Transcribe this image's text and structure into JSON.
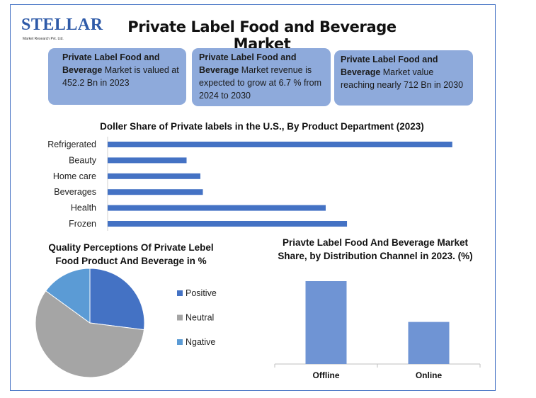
{
  "brand": {
    "logo_text": "STELLAR",
    "logo_sub": "Market Research Pvt. Ltd."
  },
  "header": {
    "title": "Private Label Food and Beverage Market"
  },
  "info_cards": [
    {
      "bold": "Private Label Food and Beverage",
      "text": " Market is valued at 452.2 Bn in 2023"
    },
    {
      "bold": "Private Label Food and Beverage",
      "text": " Market revenue is expected to grow at 6.7 % from 2024 to 2030"
    },
    {
      "bold": "Private Label Food and Beverage",
      "text": " Market value reaching nearly 712 Bn in 2030"
    }
  ],
  "colors": {
    "accent": "#4472c4",
    "card_fill": "#8eaadb",
    "positive": "#4472c4",
    "neutral": "#a5a5a5",
    "negative": "#5b9bd5",
    "column": "#6f94d4"
  },
  "chart_data": [
    {
      "type": "bar",
      "orientation": "horizontal",
      "title": "Doller Share of Private labels in the U.S., By Product Department (2023)",
      "categories": [
        "Refrigerated",
        "Beauty",
        "Home care",
        "Beverages",
        "Health",
        "Frozen"
      ],
      "values": [
        27.5,
        6.3,
        7.4,
        7.6,
        17.4,
        19.1
      ],
      "xlim": [
        0,
        30
      ],
      "grid": false
    },
    {
      "type": "pie",
      "title": "Quality Perceptions Of Private Lebel Food Product And Beverage in %",
      "labels": [
        "Positive",
        "Neutral",
        "Ngative"
      ],
      "values": [
        27,
        58,
        15
      ],
      "legend": "right"
    },
    {
      "type": "bar",
      "title": "Priavte Label Food And Beverage Market Share, by Distribution Channel in 2023. (%)",
      "categories": [
        "Offline",
        "Online"
      ],
      "values": [
        65,
        33
      ],
      "ylim": [
        0,
        80
      ],
      "grid": false
    }
  ]
}
